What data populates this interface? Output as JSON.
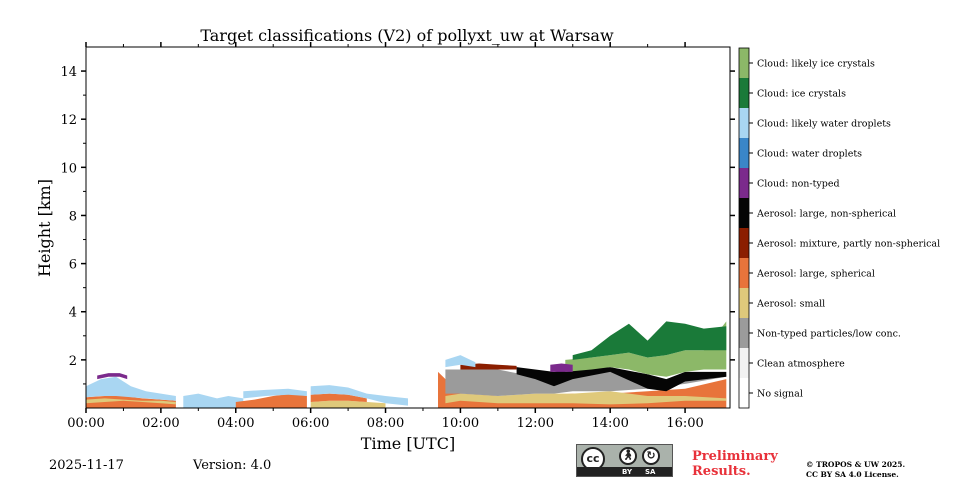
{
  "chart_data": {
    "type": "heatmap",
    "title": "Target classifications (V2) of pollyxt_uw at Warsaw",
    "xlabel": "Time [UTC]",
    "ylabel": "Height [km]",
    "xlim": [
      0,
      17.2
    ],
    "ylim": [
      0,
      15
    ],
    "x_ticks": [
      0,
      2,
      4,
      6,
      8,
      10,
      12,
      14,
      16
    ],
    "x_tick_labels": [
      "00:00",
      "02:00",
      "04:00",
      "06:00",
      "08:00",
      "10:00",
      "12:00",
      "14:00",
      "16:00"
    ],
    "y_ticks": [
      2,
      4,
      6,
      8,
      10,
      12,
      14
    ],
    "y_tick_labels": [
      "2",
      "4",
      "6",
      "8",
      "10",
      "12",
      "14"
    ],
    "classes": [
      {
        "label": "No signal",
        "color": "#ffffff"
      },
      {
        "label": "Clean atmosphere",
        "color": "#f2f2f2"
      },
      {
        "label": "Non-typed particles/low conc.",
        "color": "#9b9b9b"
      },
      {
        "label": "Aerosol: small",
        "color": "#dfc97b"
      },
      {
        "label": "Aerosol: large, spherical",
        "color": "#e8743b"
      },
      {
        "label": "Aerosol: mixture, partly non-spherical",
        "color": "#8b1e00"
      },
      {
        "label": "Aerosol: large, non-spherical",
        "color": "#050505"
      },
      {
        "label": "Cloud: non-typed",
        "color": "#7b2a8c"
      },
      {
        "label": "Cloud: water droplets",
        "color": "#3a86c8"
      },
      {
        "label": "Cloud: likely water droplets",
        "color": "#a9d6f2"
      },
      {
        "label": "Cloud: ice crystals",
        "color": "#1a7a39"
      },
      {
        "label": "Cloud: likely ice crystals",
        "color": "#8cb868"
      }
    ],
    "layers": [
      {
        "class": "Aerosol: large, spherical",
        "x": [
          0,
          0.5,
          1,
          1.5,
          2,
          2.4
        ],
        "bottom": [
          0,
          0,
          0,
          0,
          0,
          0
        ],
        "top": [
          0.45,
          0.5,
          0.5,
          0.4,
          0.35,
          0.3
        ]
      },
      {
        "class": "Aerosol: small",
        "x": [
          0,
          0.5,
          1,
          1.5,
          2,
          2.4
        ],
        "bottom": [
          0.2,
          0.25,
          0.3,
          0.25,
          0.2,
          0.15
        ],
        "top": [
          0.35,
          0.4,
          0.35,
          0.3,
          0.3,
          0.25
        ]
      },
      {
        "class": "Cloud: likely water droplets",
        "x": [
          0,
          0.4,
          0.8,
          1.2,
          1.6,
          2,
          2.4
        ],
        "bottom": [
          0.45,
          0.5,
          0.5,
          0.45,
          0.4,
          0.35,
          0.3
        ],
        "top": [
          0.9,
          1.2,
          1.3,
          0.9,
          0.7,
          0.6,
          0.5
        ]
      },
      {
        "class": "Cloud: non-typed",
        "x": [
          0.3,
          0.6,
          0.9,
          1.1
        ],
        "bottom": [
          1.2,
          1.3,
          1.3,
          1.2
        ],
        "top": [
          1.35,
          1.45,
          1.45,
          1.35
        ]
      },
      {
        "class": "Cloud: likely water droplets",
        "x": [
          2.6,
          3,
          3.5,
          3.8,
          4.2
        ],
        "bottom": [
          0,
          0,
          0,
          0,
          0
        ],
        "top": [
          0.5,
          0.6,
          0.4,
          0.5,
          0.4
        ]
      },
      {
        "class": "Aerosol: large, spherical",
        "x": [
          4,
          4.5,
          5,
          5.5,
          5.9
        ],
        "bottom": [
          0,
          0,
          0,
          0,
          0
        ],
        "top": [
          0.25,
          0.35,
          0.5,
          0.6,
          0.5
        ]
      },
      {
        "class": "Cloud: likely water droplets",
        "x": [
          4.2,
          4.8,
          5.4,
          5.9
        ],
        "bottom": [
          0.4,
          0.5,
          0.55,
          0.5
        ],
        "top": [
          0.7,
          0.75,
          0.8,
          0.7
        ]
      },
      {
        "class": "Aerosol: small",
        "x": [
          6,
          6.5,
          7,
          7.5,
          8
        ],
        "bottom": [
          0,
          0,
          0,
          0,
          0
        ],
        "top": [
          0.25,
          0.3,
          0.3,
          0.25,
          0.2
        ]
      },
      {
        "class": "Aerosol: large, spherical",
        "x": [
          6,
          6.5,
          7,
          7.5
        ],
        "bottom": [
          0.25,
          0.3,
          0.3,
          0.25
        ],
        "top": [
          0.55,
          0.6,
          0.55,
          0.4
        ]
      },
      {
        "class": "Cloud: likely water droplets",
        "x": [
          6,
          6.5,
          7,
          7.5,
          8,
          8.6
        ],
        "bottom": [
          0.55,
          0.6,
          0.55,
          0.4,
          0.2,
          0.1
        ],
        "top": [
          0.9,
          0.95,
          0.85,
          0.6,
          0.5,
          0.4
        ]
      },
      {
        "class": "Aerosol: large, spherical",
        "x": [
          9.4,
          10,
          11,
          12,
          13,
          14,
          15,
          16,
          17.1
        ],
        "bottom": [
          0,
          0,
          0,
          0,
          0,
          0,
          0,
          0,
          0
        ],
        "top": [
          1.5,
          0.6,
          0.5,
          0.5,
          0.6,
          0.6,
          0.7,
          0.8,
          1.2
        ]
      },
      {
        "class": "Aerosol: small",
        "x": [
          9.6,
          10,
          11,
          12,
          13,
          14,
          15,
          16,
          17.1
        ],
        "bottom": [
          0.2,
          0.3,
          0.2,
          0.2,
          0.2,
          0.15,
          0.2,
          0.3,
          0.3
        ],
        "top": [
          0.5,
          0.6,
          0.5,
          0.6,
          0.6,
          0.7,
          0.5,
          0.5,
          0.4
        ]
      },
      {
        "class": "Non-typed particles/low conc.",
        "x": [
          9.6,
          10,
          11,
          12,
          12.5,
          13,
          14,
          15,
          15.5,
          16,
          17.1
        ],
        "bottom": [
          0.6,
          0.6,
          0.5,
          0.6,
          0.6,
          0.7,
          0.7,
          0.8,
          0.9,
          1.0,
          1.3
        ],
        "top": [
          1.6,
          1.6,
          1.6,
          1.3,
          0.9,
          1.3,
          1.6,
          1.2,
          1.1,
          1.3,
          1.4
        ]
      },
      {
        "class": "Aerosol: large, non-spherical",
        "x": [
          11.5,
          12,
          12.5,
          13,
          14,
          15,
          15.5,
          16,
          17.1
        ],
        "bottom": [
          1.4,
          1.2,
          0.9,
          1.2,
          1.5,
          0.8,
          0.7,
          1.1,
          1.3
        ],
        "top": [
          1.7,
          1.6,
          1.5,
          1.6,
          1.7,
          1.4,
          1.2,
          1.5,
          1.5
        ]
      },
      {
        "class": "Aerosol: mixture, partly non-spherical",
        "x": [
          10,
          10.5,
          11,
          11.5
        ],
        "bottom": [
          1.6,
          1.6,
          1.6,
          1.6
        ],
        "top": [
          1.8,
          1.85,
          1.8,
          1.75
        ]
      },
      {
        "class": "Cloud: likely ice crystals",
        "x": [
          12.8,
          13.5,
          14,
          14.5,
          15,
          15.5,
          16,
          16.5,
          17.1
        ],
        "bottom": [
          1.5,
          1.6,
          1.7,
          1.6,
          1.4,
          1.3,
          1.5,
          1.6,
          1.6
        ],
        "top": [
          2.0,
          2.1,
          2.2,
          2.3,
          2.1,
          2.2,
          2.4,
          2.4,
          3.6
        ]
      },
      {
        "class": "Cloud: ice crystals",
        "x": [
          13,
          13.5,
          14,
          14.5,
          15,
          15.5,
          16,
          16.5,
          17.1
        ],
        "bottom": [
          2.0,
          2.1,
          2.2,
          2.3,
          2.1,
          2.2,
          2.4,
          2.4,
          2.4
        ],
        "top": [
          2.2,
          2.4,
          3.0,
          3.5,
          2.8,
          3.6,
          3.5,
          3.3,
          3.4
        ]
      },
      {
        "class": "Cloud: non-typed",
        "x": [
          12.4,
          12.7,
          13
        ],
        "bottom": [
          1.5,
          1.5,
          1.5
        ],
        "top": [
          1.8,
          1.85,
          1.8
        ]
      },
      {
        "class": "Cloud: likely water droplets",
        "x": [
          9.6,
          10,
          10.4
        ],
        "bottom": [
          1.7,
          1.8,
          1.7
        ],
        "top": [
          2.0,
          2.2,
          1.9
        ]
      }
    ]
  },
  "footer": {
    "date": "2025-11-17",
    "version": "Version: 4.0",
    "cc_badge_label": "cc",
    "cc_by": "BY",
    "cc_sa": "SA",
    "preliminary": "Preliminary Results.",
    "license_line1": "© TROPOS & UW 2025.",
    "license_line2": "CC BY SA 4.0 License."
  }
}
